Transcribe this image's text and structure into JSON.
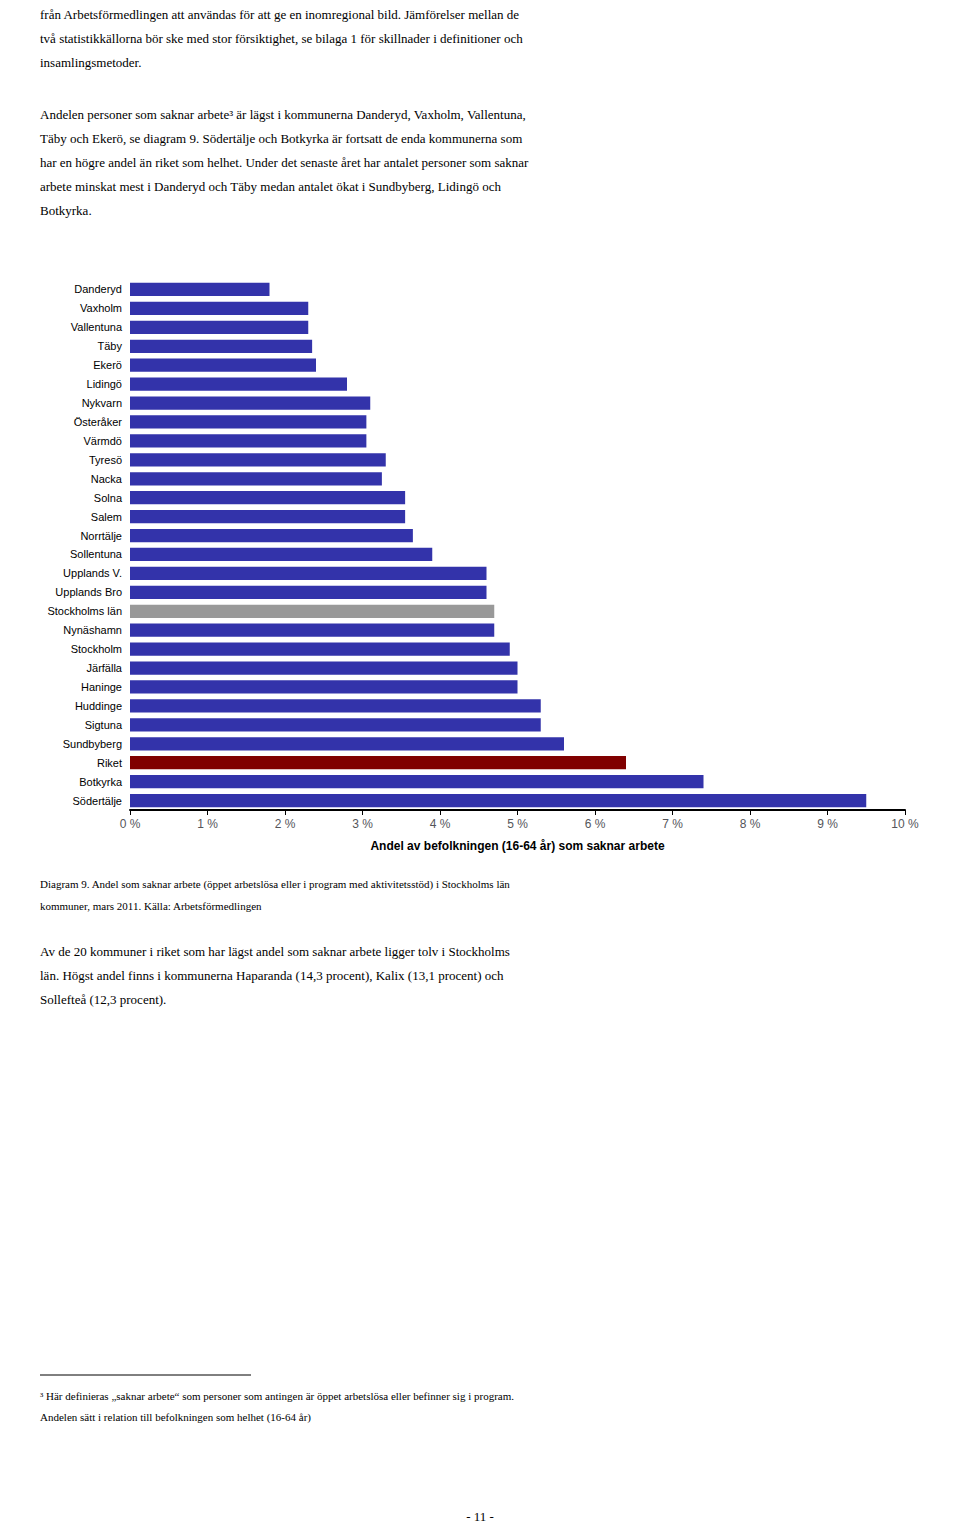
{
  "chart_data": {
    "type": "bar",
    "orientation": "horizontal",
    "categories": [
      "Danderyd",
      "Vaxholm",
      "Vallentuna",
      "Täby",
      "Ekerö",
      "Lidingö",
      "Nykvarn",
      "Österåker",
      "Värmdö",
      "Tyresö",
      "Nacka",
      "Solna",
      "Salem",
      "Norrtälje",
      "Sollentuna",
      "Upplands V.",
      "Upplands Bro",
      "Stockholms län",
      "Nynäshamn",
      "Stockholm",
      "Järfälla",
      "Haninge",
      "Huddinge",
      "Sigtuna",
      "Sundbyberg",
      "Riket",
      "Botkyrka",
      "Södertälje"
    ],
    "values": [
      1.8,
      2.3,
      2.3,
      2.35,
      2.4,
      2.8,
      3.1,
      3.05,
      3.05,
      3.3,
      3.25,
      3.55,
      3.55,
      3.65,
      3.9,
      4.6,
      4.6,
      4.7,
      4.7,
      4.9,
      5.0,
      5.0,
      5.3,
      5.3,
      5.6,
      6.4,
      7.4,
      9.5
    ],
    "colors": [
      "#3333aa",
      "#3333aa",
      "#3333aa",
      "#3333aa",
      "#3333aa",
      "#3333aa",
      "#3333aa",
      "#3333aa",
      "#3333aa",
      "#3333aa",
      "#3333aa",
      "#3333aa",
      "#3333aa",
      "#3333aa",
      "#3333aa",
      "#3333aa",
      "#3333aa",
      "#999999",
      "#3333aa",
      "#3333aa",
      "#3333aa",
      "#3333aa",
      "#3333aa",
      "#3333aa",
      "#3333aa",
      "#800000",
      "#3333aa",
      "#3333aa"
    ],
    "xlabel": "Andel av befolkningen (16-64 år) som saknar arbete",
    "xlim": [
      0,
      10
    ],
    "xticks": [
      {
        "value": 0,
        "label": "0 %"
      },
      {
        "value": 1,
        "label": "1 %"
      },
      {
        "value": 2,
        "label": "2 %"
      },
      {
        "value": 3,
        "label": "3 %"
      },
      {
        "value": 4,
        "label": "4 %"
      },
      {
        "value": 5,
        "label": "5 %"
      },
      {
        "value": 6,
        "label": "6 %"
      },
      {
        "value": 7,
        "label": "7 %"
      },
      {
        "value": 8,
        "label": "8 %"
      },
      {
        "value": 9,
        "label": "9 %"
      },
      {
        "value": 10,
        "label": "10 %"
      }
    ],
    "grid": false,
    "annotations": [
      "från Arbetsförmedlingen att användas för att ge en inomregional bild. Jämförelser mellan de",
      "två statistikkällorna bör ske med stor försiktighet, se bilaga 1 för skillnader i definitioner och",
      "insamlingsmetoder.",
      "Andelen personer som saknar arbete³ är lägst i kommunerna Danderyd, Vaxholm, Vallentuna,",
      "Täby och Ekerö, se diagram 9. Södertälje och Botkyrka är fortsatt de enda kommunerna som",
      "har en högre andel än riket som helhet. Under det senaste året har antalet personer som saknar",
      "arbete minskat mest i Danderyd och Täby medan antalet ökat i Sundbyberg, Lidingö och",
      "Botkyrka.",
      "Diagram 9. Andel som saknar arbete (öppet arbetslösa eller i program med aktivitetsstöd) i Stockholms län",
      "kommuner, mars 2011. Källa: Arbetsförmedlingen",
      "Av de 20 kommuner i riket som har lägst andel som saknar arbete ligger tolv i Stockholms",
      "län. Högst andel finns i kommunerna Haparanda (14,3 procent), Kalix (13,1 procent) och",
      "Sollefteå (12,3 procent).",
      "³ Här definieras „saknar arbete“ som personer som antingen är öppet arbetslösa eller befinner sig i program.",
      "Andelen sätt i relation till befolkningen som helhet (16-64 år)",
      "- 11 -"
    ]
  }
}
